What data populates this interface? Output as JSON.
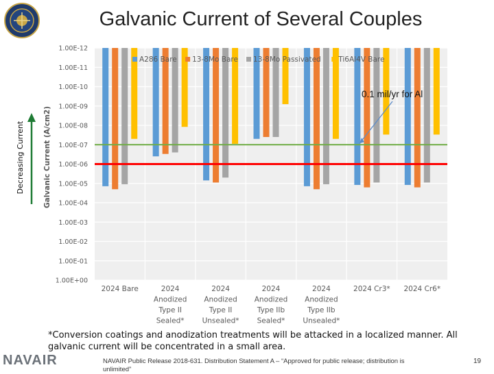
{
  "slide": {
    "title": "Galvanic Current of Several Couples",
    "footnote": "*Conversion coatings and anodization treatments will be attacked in a localized manner. All galvanic current will be concentrated in a small area.",
    "footer_logo": "NAVAIR",
    "release_text": "NAVAIR Public Release 2018-631. Distribution Statement A – “Approved for public release; distribution is unlimited”",
    "page_number": "19",
    "logo_icon": "navair-seal-icon"
  },
  "chart_data": {
    "type": "bar",
    "title": "",
    "ylabel": "Galvanic Current (A/cm2)",
    "side_label": "Decreasing Current",
    "y_scale": "log-inverted",
    "y_tick_labels": [
      "1.00E-12",
      "1.00E-11",
      "1.00E-10",
      "1.00E-09",
      "1.00E-08",
      "1.00E-07",
      "1.00E-06",
      "1.00E-05",
      "1.00E-04",
      "1.00E-03",
      "1.00E-02",
      "1.00E-01",
      "1.00E+00"
    ],
    "ylim": [
      1e-12,
      1
    ],
    "categories": [
      [
        "2024 Bare"
      ],
      [
        "2024",
        "Anodized",
        "Type II",
        "Sealed*"
      ],
      [
        "2024",
        "Anodized",
        "Type II",
        "Unsealed*"
      ],
      [
        "2024",
        "Anodized",
        "Type IIb",
        "Sealed*"
      ],
      [
        "2024",
        "Anodized",
        "Type IIb",
        "Unsealed*"
      ],
      [
        "2024 Cr3*"
      ],
      [
        "2024 Cr6*"
      ]
    ],
    "series": [
      {
        "name": "A286 Bare",
        "color": "#5b9bd5",
        "values": [
          1.4e-05,
          4e-07,
          7e-06,
          5e-08,
          1.4e-05,
          1.2e-05,
          1.2e-05
        ]
      },
      {
        "name": "13-8Mo Bare",
        "color": "#ed7d31",
        "values": [
          2e-05,
          3e-07,
          9e-06,
          4e-08,
          2e-05,
          1.6e-05,
          1.6e-05
        ]
      },
      {
        "name": "13-8Mo Passivated",
        "color": "#a5a5a5",
        "values": [
          1.1e-05,
          2.5e-07,
          5e-06,
          4e-08,
          1.1e-05,
          9e-06,
          9e-06
        ]
      },
      {
        "name": "Ti6Al4V Bare",
        "color": "#ffc000",
        "values": [
          5e-08,
          1.2e-08,
          9e-08,
          8e-10,
          5e-08,
          3e-08,
          3e-08
        ]
      }
    ],
    "reference_lines": [
      {
        "value": 1e-07,
        "color": "#70ad47",
        "label": ""
      },
      {
        "value": 1e-06,
        "color": "#ff0000",
        "label": ""
      }
    ],
    "annotation": {
      "text": "0.1 mil/yr for Al",
      "target_value": 1e-07
    },
    "grid": true,
    "legend_position": "top"
  }
}
